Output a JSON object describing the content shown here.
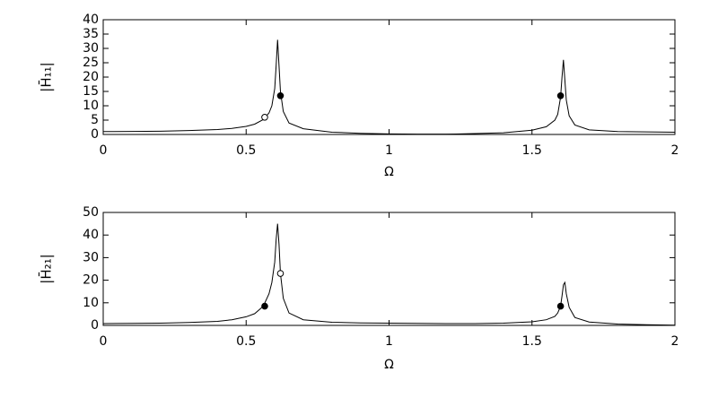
{
  "chart_data": [
    {
      "type": "line",
      "xlabel": "Ω",
      "ylabel": "|H̄₁₁|",
      "x": [
        0,
        0.1,
        0.2,
        0.3,
        0.4,
        0.45,
        0.5,
        0.53,
        0.56,
        0.58,
        0.59,
        0.6,
        0.605,
        0.61,
        0.615,
        0.62,
        0.63,
        0.65,
        0.7,
        0.8,
        0.9,
        1.0,
        1.1,
        1.2,
        1.3,
        1.4,
        1.5,
        1.55,
        1.58,
        1.59,
        1.6,
        1.605,
        1.61,
        1.615,
        1.62,
        1.63,
        1.65,
        1.7,
        1.8,
        1.9,
        2.0
      ],
      "series": [
        {
          "color": "#000000",
          "values": [
            1,
            1.05,
            1.15,
            1.35,
            1.7,
            2.1,
            2.8,
            3.6,
            5.2,
            7.5,
            10,
            16,
            24,
            33,
            24,
            15,
            8,
            4,
            2,
            0.8,
            0.4,
            0.2,
            0.1,
            0.1,
            0.3,
            0.6,
            1.5,
            2.7,
            5,
            7,
            13,
            20,
            26,
            19,
            12,
            6.5,
            3.3,
            1.6,
            1,
            0.9,
            0.8
          ]
        }
      ],
      "markers": [
        {
          "fill": "#000000",
          "x": [
            0.62,
            1.6
          ],
          "y": [
            13.5,
            13.5
          ]
        },
        {
          "fill": "none",
          "x": [
            0.565
          ],
          "y": [
            6
          ]
        }
      ],
      "xlim": [
        0,
        2
      ],
      "xticks": [
        0,
        0.5,
        1,
        1.5,
        2
      ],
      "ylim": [
        0,
        40
      ],
      "yticks": [
        0,
        5,
        10,
        15,
        20,
        25,
        30,
        35,
        40
      ]
    },
    {
      "type": "line",
      "xlabel": "Ω",
      "ylabel": "|H̄₂₁|",
      "x": [
        0,
        0.1,
        0.2,
        0.3,
        0.4,
        0.45,
        0.5,
        0.53,
        0.56,
        0.58,
        0.59,
        0.6,
        0.605,
        0.61,
        0.615,
        0.62,
        0.63,
        0.65,
        0.7,
        0.8,
        0.9,
        1.0,
        1.1,
        1.2,
        1.3,
        1.4,
        1.5,
        1.55,
        1.58,
        1.59,
        1.6,
        1.605,
        1.61,
        1.615,
        1.62,
        1.63,
        1.65,
        1.7,
        1.8,
        1.9,
        2.0
      ],
      "series": [
        {
          "color": "#000000",
          "values": [
            0.8,
            0.9,
            1.0,
            1.3,
            1.8,
            2.5,
            3.8,
            5.2,
            8.5,
            14,
            19,
            28,
            38,
            45,
            36,
            23,
            12,
            5.5,
            2.5,
            1.4,
            1.1,
            1.0,
            0.9,
            0.8,
            0.8,
            1.0,
            1.6,
            2.5,
            4,
            5.5,
            8.5,
            13,
            18,
            19,
            14,
            8,
            3.5,
            1.5,
            0.6,
            0.3,
            0.1
          ]
        }
      ],
      "markers": [
        {
          "fill": "#000000",
          "x": [
            0.565,
            1.6
          ],
          "y": [
            8.5,
            8.5
          ]
        },
        {
          "fill": "none",
          "x": [
            0.62
          ],
          "y": [
            23
          ]
        }
      ],
      "xlim": [
        0,
        2
      ],
      "xticks": [
        0,
        0.5,
        1,
        1.5,
        2
      ],
      "ylim": [
        0,
        50
      ],
      "yticks": [
        0,
        10,
        20,
        30,
        40,
        50
      ]
    }
  ]
}
